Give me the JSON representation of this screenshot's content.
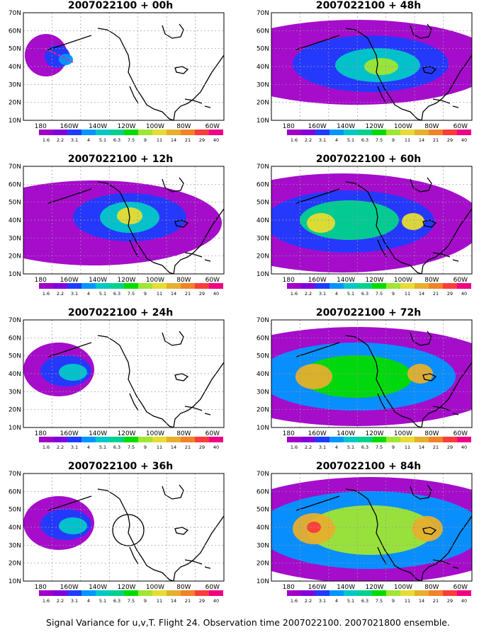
{
  "caption": "Signal Variance for u,v,T. Flight 24. Observation time 2007022100. 2007021800 ensemble.",
  "lat_labels": [
    "70N",
    "60N",
    "50N",
    "40N",
    "30N",
    "20N",
    "10N"
  ],
  "lon_labels": [
    "180",
    "160W",
    "140W",
    "120W",
    "100W",
    "80W",
    "60W"
  ],
  "colorbar": {
    "labels": [
      "1.6",
      "2.2",
      "3.1",
      "4",
      "5.1",
      "6.3",
      "7.5",
      "9",
      "11",
      "14",
      "21",
      "29",
      "40"
    ],
    "colors": [
      "#a000c8",
      "#8200dc",
      "#1e3cff",
      "#0096ff",
      "#00c8c8",
      "#00d28c",
      "#00dc00",
      "#a0e632",
      "#e6dc32",
      "#e6af2d",
      "#f08228",
      "#fa3c3c",
      "#f00082"
    ]
  },
  "panels": [
    {
      "title": "2007022100 + 00h",
      "level": 0
    },
    {
      "title": "2007022100 + 48h",
      "level": 3
    },
    {
      "title": "2007022100 + 12h",
      "level": 1
    },
    {
      "title": "2007022100 + 60h",
      "level": 4
    },
    {
      "title": "2007022100 + 24h",
      "level": 2
    },
    {
      "title": "2007022100 + 72h",
      "level": 5
    },
    {
      "title": "2007022100 + 36h",
      "level": 2
    },
    {
      "title": "2007022100 + 84h",
      "level": 6
    }
  ]
}
